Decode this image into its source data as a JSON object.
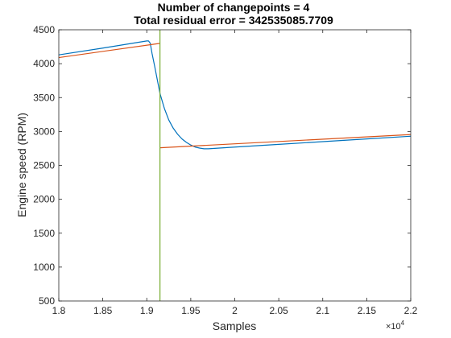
{
  "chart_data": {
    "type": "line",
    "title_line1": "Number of changepoints = 4",
    "title_line2": "Total residual error = 342535085.7709",
    "xlabel": "Samples",
    "ylabel": "Engine speed (RPM)",
    "x_exponent_label": "×10",
    "x_exponent_power": "4",
    "xlim": [
      1.8,
      2.2
    ],
    "ylim": [
      500,
      4500
    ],
    "x_ticks": [
      1.8,
      1.85,
      1.9,
      1.95,
      2.0,
      2.05,
      2.1,
      2.15,
      2.2
    ],
    "x_tick_labels": [
      "1.8",
      "1.85",
      "1.9",
      "1.95",
      "2",
      "2.05",
      "2.1",
      "2.15",
      "2.2"
    ],
    "y_ticks": [
      500,
      1000,
      1500,
      2000,
      2500,
      3000,
      3500,
      4000,
      4500
    ],
    "y_tick_labels": [
      "500",
      "1000",
      "1500",
      "2000",
      "2500",
      "3000",
      "3500",
      "4000",
      "4500"
    ],
    "grid": false,
    "legend": "none",
    "series": [
      {
        "color": "#0072BD",
        "x": [
          1.8,
          1.85,
          1.9,
          1.902,
          1.904,
          1.906,
          1.909,
          1.912,
          1.915,
          1.92,
          1.925,
          1.93,
          1.935,
          1.94,
          1.945,
          1.95,
          1.955,
          1.96,
          1.965,
          1.97,
          2.0,
          2.05,
          2.1,
          2.15,
          2.2
        ],
        "y": [
          4130,
          4230,
          4335,
          4335,
          4300,
          4150,
          3960,
          3760,
          3560,
          3340,
          3170,
          3050,
          2960,
          2890,
          2840,
          2800,
          2770,
          2755,
          2745,
          2745,
          2770,
          2810,
          2850,
          2890,
          2930
        ]
      },
      {
        "color": "#D95319",
        "x": [
          1.8,
          1.915
        ],
        "y": [
          4090,
          4300
        ]
      },
      {
        "color": "#D95319",
        "x": [
          1.915,
          2.2
        ],
        "y": [
          2760,
          2955
        ]
      }
    ],
    "changepoint_lines": [
      {
        "x": 1.915,
        "color": "#77AC30"
      }
    ]
  }
}
